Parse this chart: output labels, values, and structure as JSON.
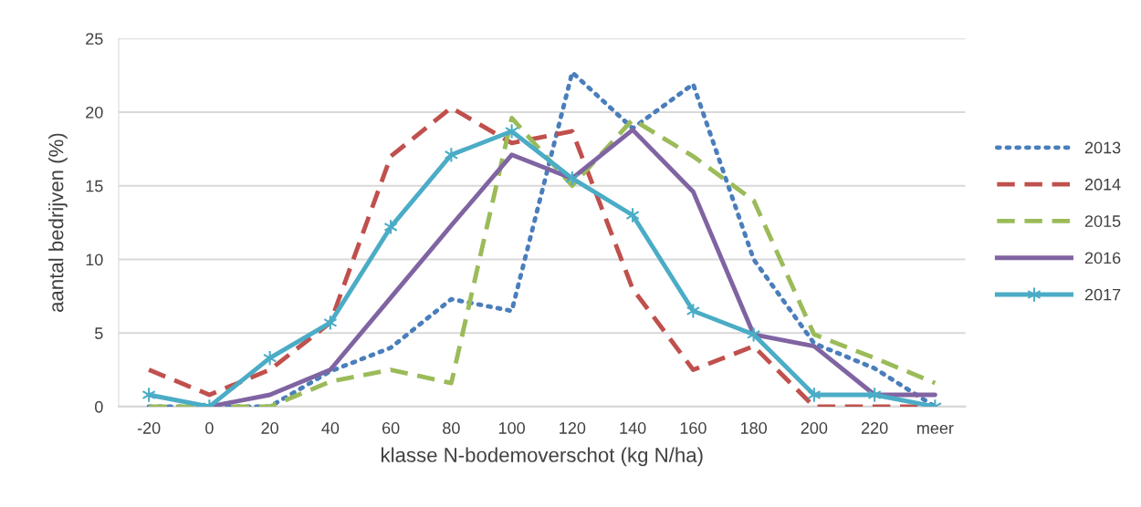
{
  "chart_data": {
    "type": "line",
    "xlabel": "klasse N-bodemoverschot (kg N/ha)",
    "ylabel": "aantal bedrijven (%)",
    "categories": [
      "-20",
      "0",
      "20",
      "40",
      "60",
      "80",
      "100",
      "120",
      "140",
      "160",
      "180",
      "200",
      "220",
      "meer"
    ],
    "series": [
      {
        "name": "2013",
        "color": "#4a7ebb",
        "line_style": "dotted",
        "values": [
          0,
          0,
          0,
          2.4,
          4,
          7.3,
          6.5,
          22.7,
          18.9,
          21.9,
          10,
          4.3,
          2.6,
          0
        ]
      },
      {
        "name": "2014",
        "color": "#c0504d",
        "line_style": "dashed",
        "values": [
          2.5,
          0.8,
          2.5,
          5.7,
          17,
          20.3,
          17.9,
          18.7,
          8,
          2.5,
          4.1,
          0,
          0,
          0
        ]
      },
      {
        "name": "2015",
        "color": "#9bbb59",
        "line_style": "dashed",
        "values": [
          0,
          0,
          0,
          1.7,
          2.5,
          1.6,
          19.6,
          15,
          19.5,
          17,
          14,
          4.9,
          3.3,
          1.6
        ]
      },
      {
        "name": "2016",
        "color": "#8064a2",
        "line_style": "solid",
        "values": [
          null,
          0,
          0.8,
          2.5,
          7.4,
          12.3,
          17.1,
          15.5,
          18.8,
          14.6,
          4.9,
          4.1,
          0.8,
          0.8
        ]
      },
      {
        "name": "2017",
        "color": "#4bacc6",
        "line_style": "solid",
        "marker": "cross",
        "values": [
          0.8,
          0,
          3.3,
          5.7,
          12.2,
          17.1,
          18.7,
          15.5,
          13,
          6.5,
          4.9,
          0.8,
          0.8,
          0
        ]
      }
    ],
    "ylim": [
      0,
      25
    ],
    "yticks": [
      0,
      5,
      10,
      15,
      20,
      25
    ],
    "grid": "y",
    "legend": "right"
  }
}
